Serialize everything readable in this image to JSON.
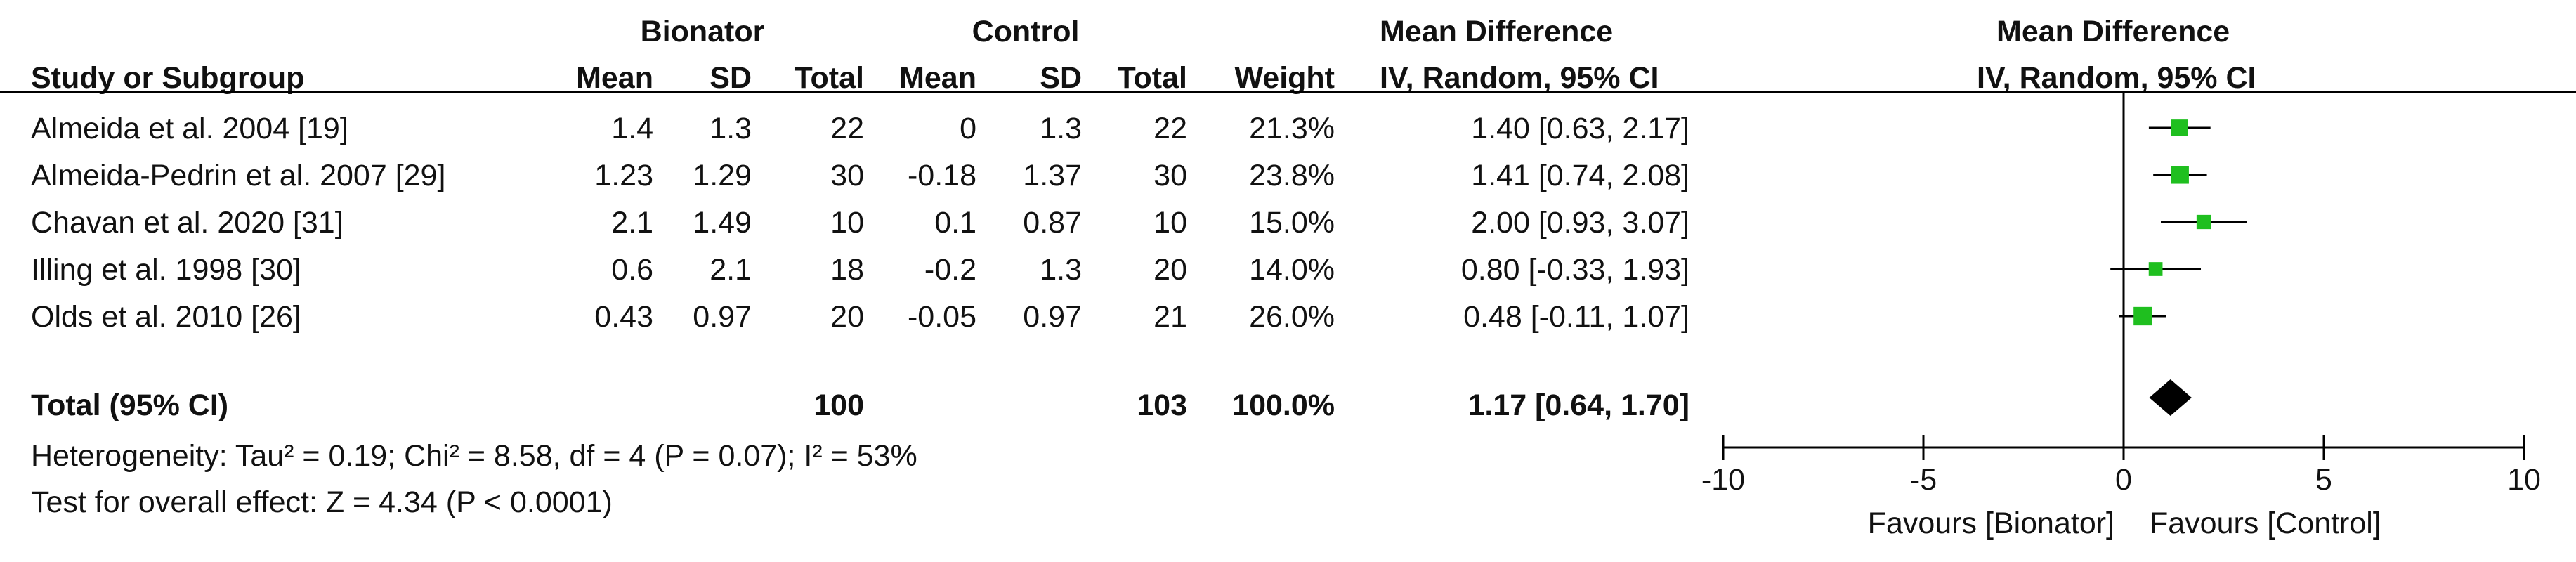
{
  "header": {
    "group1": "Bionator",
    "group2": "Control",
    "effect_title": "Mean Difference",
    "plot_title": "Mean Difference",
    "study_col": "Study or Subgroup",
    "mean": "Mean",
    "sd": "SD",
    "total": "Total",
    "weight": "Weight",
    "method": "IV, Random, 95% CI",
    "plot_method": "IV, Random, 95% CI"
  },
  "studies": [
    {
      "name": "Almeida et al. 2004 [19]",
      "m1": "1.4",
      "sd1": "1.3",
      "n1": "22",
      "m2": "0",
      "sd2": "1.3",
      "n2": "22",
      "weight": "21.3%",
      "ci": "1.40 [0.63, 2.17]"
    },
    {
      "name": "Almeida-Pedrin et al. 2007 [29]",
      "m1": "1.23",
      "sd1": "1.29",
      "n1": "30",
      "m2": "-0.18",
      "sd2": "1.37",
      "n2": "30",
      "weight": "23.8%",
      "ci": "1.41 [0.74, 2.08]"
    },
    {
      "name": "Chavan et al. 2020 [31]",
      "m1": "2.1",
      "sd1": "1.49",
      "n1": "10",
      "m2": "0.1",
      "sd2": "0.87",
      "n2": "10",
      "weight": "15.0%",
      "ci": "2.00 [0.93, 3.07]"
    },
    {
      "name": "Illing et al. 1998 [30]",
      "m1": "0.6",
      "sd1": "2.1",
      "n1": "18",
      "m2": "-0.2",
      "sd2": "1.3",
      "n2": "20",
      "weight": "14.0%",
      "ci": "0.80 [-0.33, 1.93]"
    },
    {
      "name": "Olds et al. 2010 [26]",
      "m1": "0.43",
      "sd1": "0.97",
      "n1": "20",
      "m2": "-0.05",
      "sd2": "0.97",
      "n2": "21",
      "weight": "26.0%",
      "ci": "0.48 [-0.11, 1.07]"
    }
  ],
  "total": {
    "label": "Total (95% CI)",
    "n1": "100",
    "n2": "103",
    "weight": "100.0%",
    "ci": "1.17 [0.64, 1.70]"
  },
  "heterogeneity": "Heterogeneity: Tau² = 0.19; Chi² = 8.58, df = 4 (P = 0.07); I² = 53%",
  "overall_effect": "Test for overall effect: Z = 4.34 (P < 0.0001)",
  "favours_left": "Favours [Bionator]",
  "favours_right": "Favours [Control]",
  "colors": {
    "marker": "#1fbf1f",
    "diamond": "#000000",
    "line": "#000000"
  },
  "chart_data": {
    "type": "forest",
    "xlim": [
      -10,
      10
    ],
    "ticks": [
      -10,
      -5,
      0,
      5,
      10
    ],
    "tick_labels": [
      "-10",
      "-5",
      "0",
      "5",
      "10"
    ],
    "points": [
      {
        "study": "Almeida et al. 2004 [19]",
        "estimate": 1.4,
        "lower": 0.63,
        "upper": 2.17,
        "weight": 21.3
      },
      {
        "study": "Almeida-Pedrin et al. 2007 [29]",
        "estimate": 1.41,
        "lower": 0.74,
        "upper": 2.08,
        "weight": 23.8
      },
      {
        "study": "Chavan et al. 2020 [31]",
        "estimate": 2.0,
        "lower": 0.93,
        "upper": 3.07,
        "weight": 15.0
      },
      {
        "study": "Illing et al. 1998 [30]",
        "estimate": 0.8,
        "lower": -0.33,
        "upper": 1.93,
        "weight": 14.0
      },
      {
        "study": "Olds et al. 2010 [26]",
        "estimate": 0.48,
        "lower": -0.11,
        "upper": 1.07,
        "weight": 26.0
      }
    ],
    "pooled": {
      "estimate": 1.17,
      "lower": 0.64,
      "upper": 1.7
    }
  }
}
